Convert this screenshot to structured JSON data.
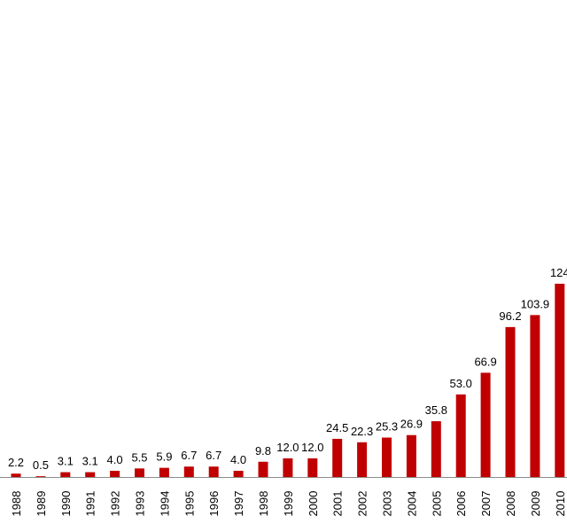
{
  "chart_data": {
    "type": "bar",
    "categories": [
      "1988",
      "1989",
      "1990",
      "1991",
      "1992",
      "1993",
      "1994",
      "1995",
      "1996",
      "1997",
      "1998",
      "1999",
      "2000",
      "2001",
      "2002",
      "2003",
      "2004",
      "2005",
      "2006",
      "2007",
      "2008",
      "2009",
      "2010"
    ],
    "values": [
      2.2,
      0.5,
      3.1,
      3.1,
      4.0,
      5.5,
      5.9,
      6.7,
      6.7,
      4.0,
      9.8,
      12.0,
      12.0,
      24.5,
      22.3,
      25.3,
      26.9,
      35.8,
      53.0,
      66.9,
      96.2,
      103.9,
      124.0
    ],
    "data_labels": [
      "2.2",
      "0.5",
      "3.1",
      "3.1",
      "4.0",
      "5.5",
      "5.9",
      "6.7",
      "6.7",
      "4.0",
      "9.8",
      "12.0",
      "12.0",
      "24.5",
      "22.3",
      "25.3",
      "26.9",
      "35.8",
      "53.0",
      "66.9",
      "96.2",
      "103.9",
      "124"
    ],
    "bar_color": "#c00000",
    "title": "",
    "xlabel": "",
    "ylabel": "",
    "ylim": [
      0,
      124
    ],
    "grid": false,
    "legend": "none"
  }
}
